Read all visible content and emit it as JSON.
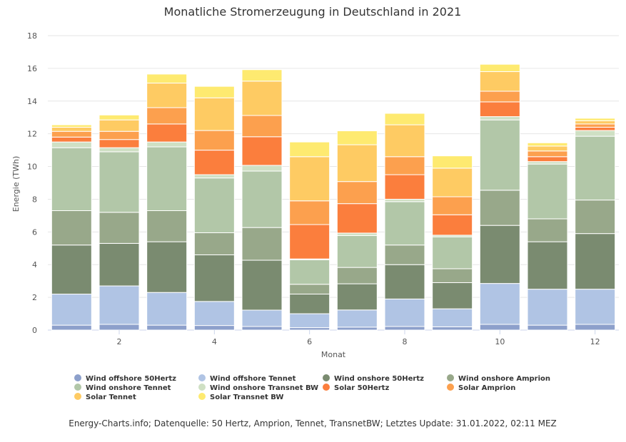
{
  "chart_data": {
    "type": "bar",
    "stacked": true,
    "title": "Monatliche Stromerzeugung in Deutschland in 2021",
    "xlabel": "Monat",
    "ylabel": "Energie (TWh)",
    "ylim": [
      0,
      18
    ],
    "yticks": [
      "0",
      "2",
      "4",
      "6",
      "8",
      "10",
      "12",
      "14",
      "16",
      "18"
    ],
    "categories": [
      1,
      2,
      3,
      4,
      5,
      6,
      7,
      8,
      9,
      10,
      11,
      12
    ],
    "xtick_labels": {
      "2": "2",
      "4": "4",
      "6": "6",
      "8": "8",
      "10": "10",
      "12": "12"
    },
    "grid": true,
    "legend_position": "bottom",
    "series": [
      {
        "name": "Wind offshore 50Hertz",
        "color": "#8da0cb",
        "values": [
          0.3,
          0.35,
          0.3,
          0.28,
          0.22,
          0.15,
          0.18,
          0.22,
          0.2,
          0.35,
          0.3,
          0.35
        ]
      },
      {
        "name": "Wind offshore Tennet",
        "color": "#b0c4e4",
        "values": [
          1.9,
          2.35,
          2.0,
          1.47,
          1.0,
          0.85,
          1.05,
          1.68,
          1.1,
          2.5,
          2.2,
          2.15
        ]
      },
      {
        "name": "Wind onshore 50Hertz",
        "color": "#7a8b70",
        "values": [
          3.0,
          2.6,
          3.1,
          2.85,
          3.05,
          1.2,
          1.6,
          2.1,
          1.6,
          3.55,
          2.9,
          3.4
        ]
      },
      {
        "name": "Wind onshore Amprion",
        "color": "#98a88a",
        "values": [
          2.1,
          1.9,
          1.9,
          1.35,
          2.0,
          0.6,
          1.0,
          1.2,
          0.85,
          2.15,
          1.4,
          2.05
        ]
      },
      {
        "name": "Wind onshore Tennet",
        "color": "#b2c7a8",
        "values": [
          3.85,
          3.7,
          3.9,
          3.35,
          3.45,
          1.5,
          1.95,
          2.65,
          1.95,
          4.3,
          3.35,
          3.9
        ]
      },
      {
        "name": "Wind onshore Transnet BW",
        "color": "#cfe0c4",
        "values": [
          0.35,
          0.25,
          0.3,
          0.2,
          0.35,
          0.05,
          0.15,
          0.15,
          0.1,
          0.2,
          0.15,
          0.35
        ]
      },
      {
        "name": "Solar 50Hertz",
        "color": "#fb7e3d",
        "values": [
          0.3,
          0.5,
          1.1,
          1.5,
          1.75,
          2.1,
          1.8,
          1.5,
          1.25,
          0.9,
          0.3,
          0.2
        ]
      },
      {
        "name": "Solar Amprion",
        "color": "#fca04e",
        "values": [
          0.35,
          0.5,
          1.0,
          1.2,
          1.3,
          1.45,
          1.35,
          1.1,
          1.1,
          0.65,
          0.35,
          0.2
        ]
      },
      {
        "name": "Solar Tennet",
        "color": "#fecb63",
        "values": [
          0.25,
          0.7,
          1.5,
          2.0,
          2.1,
          2.7,
          2.25,
          1.95,
          1.75,
          1.2,
          0.3,
          0.2
        ]
      },
      {
        "name": "Solar Transnet BW",
        "color": "#feea70",
        "values": [
          0.15,
          0.3,
          0.55,
          0.7,
          0.7,
          0.9,
          0.85,
          0.7,
          0.75,
          0.45,
          0.2,
          0.15
        ]
      }
    ]
  },
  "footer": "Energy-Charts.info; Datenquelle: 50 Hertz, Amprion, Tennet, TransnetBW; Letztes Update: 31.01.2022, 02:11 MEZ"
}
